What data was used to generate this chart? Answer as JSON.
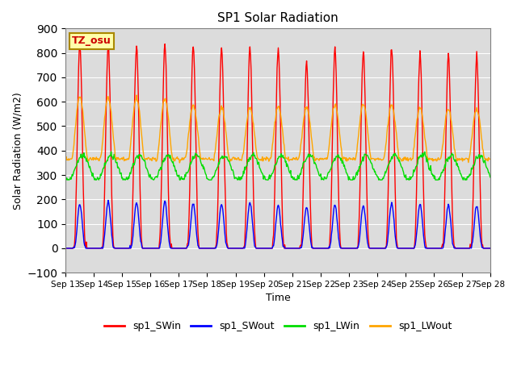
{
  "title": "SP1 Solar Radiation",
  "xlabel": "Time",
  "ylabel": "Solar Radiation (W/m2)",
  "ylim": [
    -100,
    900
  ],
  "yticks": [
    -100,
    0,
    100,
    200,
    300,
    400,
    500,
    600,
    700,
    800,
    900
  ],
  "colors": {
    "SWin": "#ff0000",
    "SWout": "#0000ff",
    "LWin": "#00dd00",
    "LWout": "#ffa500"
  },
  "legend_labels": [
    "sp1_SWin",
    "sp1_SWout",
    "sp1_LWin",
    "sp1_LWout"
  ],
  "tz_label": "TZ_osu",
  "plot_bg": "#dcdcdc",
  "linewidth": 1.0
}
